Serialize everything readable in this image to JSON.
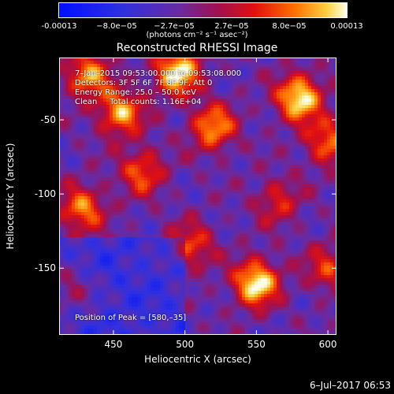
{
  "chart_data": {
    "type": "heatmap",
    "title": "Reconstructed RHESSI Image",
    "xlabel": "Heliocentric X (arcsec)",
    "ylabel": "Heliocentric Y (arcsec)",
    "xlim": [
      412,
      606
    ],
    "ylim": [
      -195,
      -8
    ],
    "xticks": [
      450,
      500,
      550,
      600
    ],
    "yticks": [
      -50,
      -100,
      -150
    ],
    "colorbar": {
      "ticks": [
        "-0.00013",
        "−8.0e−05",
        "−2.7e−05",
        "2.7e−05",
        "8.0e−05",
        "0.00013"
      ],
      "label": "(photons cm⁻² s⁻¹ asec⁻²)",
      "range": [
        -0.00013,
        0.00013
      ]
    },
    "annotations": [
      "7–Jan–2015 09:53:00.000 to 09:53:08.000",
      "Detectors: 3F 5F 6F 7F 8F 9F, Att 0",
      "Energy Range: 25.0 – 50.0 keV",
      "Clean     Total counts: 1.16E+04"
    ],
    "peak_label": "Position of Peak = [580,–35]",
    "peak": [
      580,
      -35
    ],
    "bright_sources": [
      {
        "x": 495,
        "y": -18,
        "level": 1.0
      },
      {
        "x": 580,
        "y": -35,
        "level": 1.0
      },
      {
        "x": 550,
        "y": -160,
        "level": 1.0
      },
      {
        "x": 455,
        "y": -45,
        "level": 0.8
      },
      {
        "x": 432,
        "y": -20,
        "level": 0.75
      },
      {
        "x": 520,
        "y": -55,
        "level": 0.75
      },
      {
        "x": 600,
        "y": -65,
        "level": 0.65
      },
      {
        "x": 428,
        "y": -110,
        "level": 0.7
      },
      {
        "x": 470,
        "y": -85,
        "level": 0.6
      },
      {
        "x": 505,
        "y": -135,
        "level": 0.55
      },
      {
        "x": 565,
        "y": -105,
        "level": 0.45
      },
      {
        "x": 600,
        "y": -150,
        "level": 0.5
      },
      {
        "x": 420,
        "y": -165,
        "level": 0.45
      }
    ]
  },
  "footer": {
    "date": "6–Jul–2017 06:53"
  }
}
